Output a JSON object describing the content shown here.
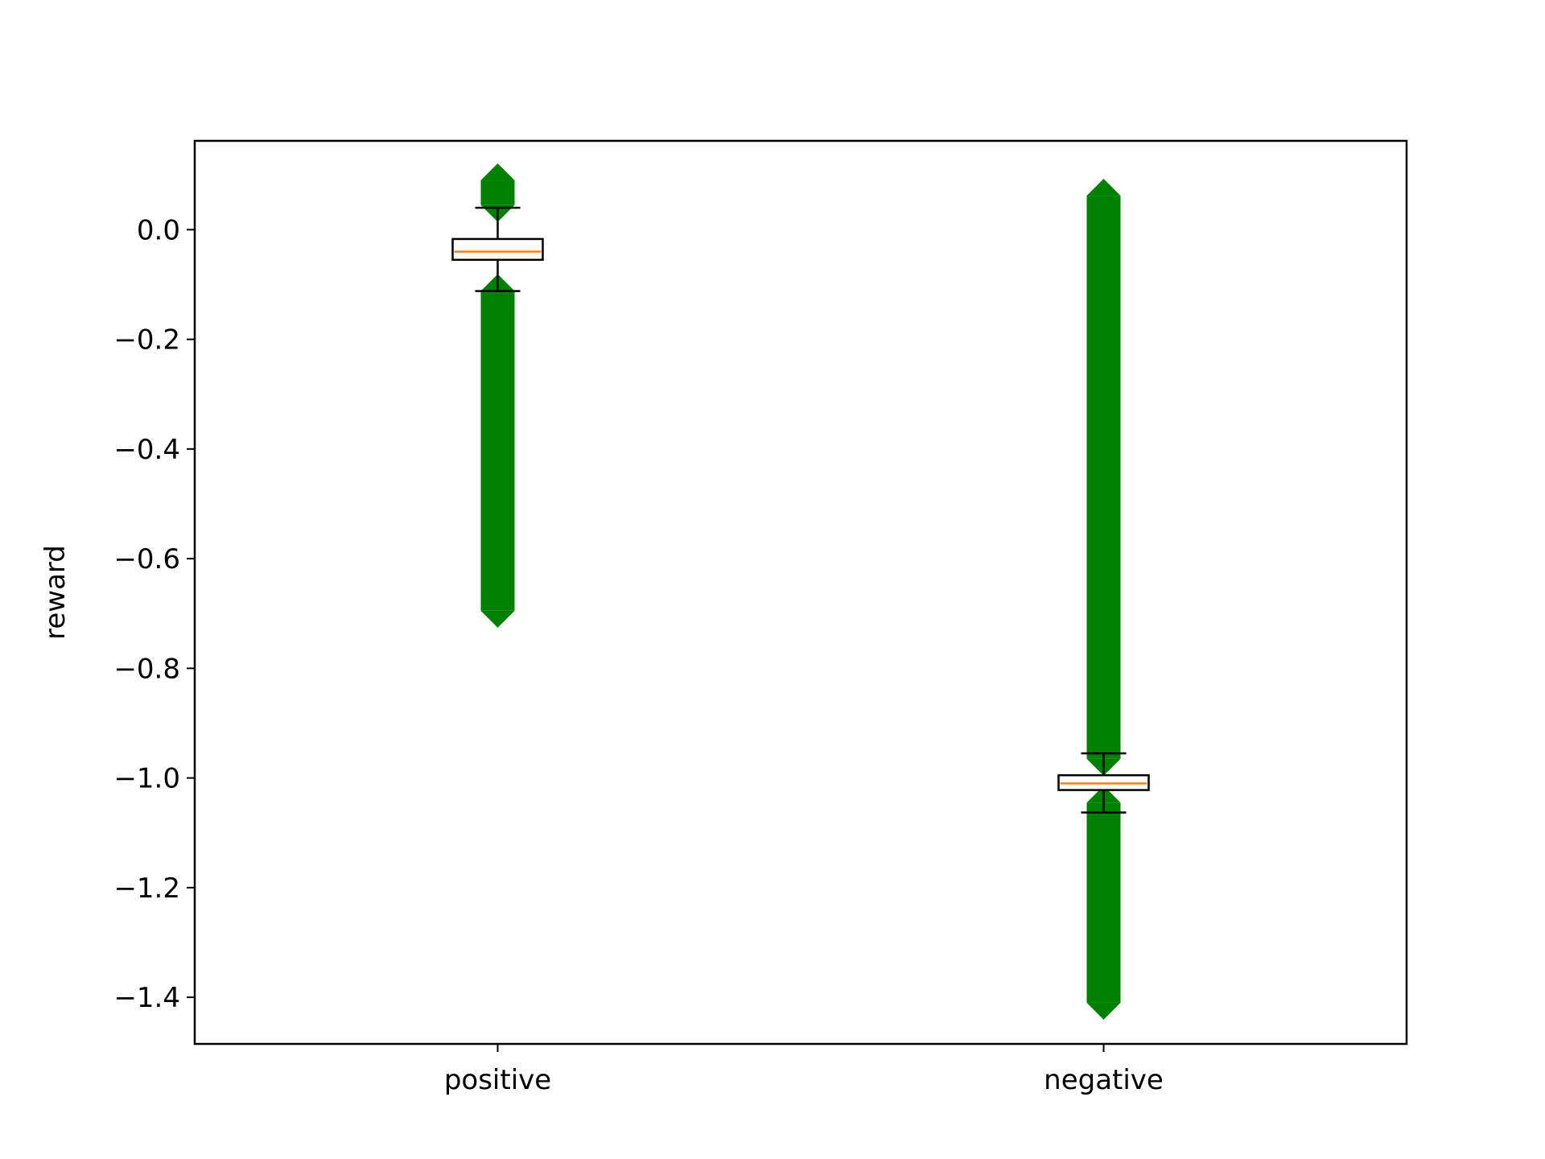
{
  "chart_data": {
    "type": "boxplot",
    "title": "",
    "xlabel": "",
    "ylabel": "reward",
    "ylim": [
      -1.485,
      0.162
    ],
    "yticks": [
      0.0,
      -0.2,
      -0.4,
      -0.6,
      -0.8,
      -1.0,
      -1.2,
      -1.4
    ],
    "ytick_labels": [
      "0.0",
      "−0.2",
      "−0.4",
      "−0.6",
      "−0.8",
      "−1.0",
      "−1.2",
      "−1.4"
    ],
    "categories": [
      "positive",
      "negative"
    ],
    "grid": false,
    "colors": {
      "box": "#000000",
      "median": "#ff7f0e",
      "flier": "#008000"
    },
    "boxes": [
      {
        "name": "positive",
        "whisker_high": 0.04,
        "q3": -0.017,
        "median": -0.04,
        "q1": -0.055,
        "whisker_low": -0.112,
        "fliers_high_range": [
          0.045,
          0.09
        ],
        "fliers_low_range": [
          -0.112,
          -0.695
        ]
      },
      {
        "name": "negative",
        "whisker_high": -0.955,
        "q3": -0.995,
        "median": -1.01,
        "q1": -1.022,
        "whisker_low": -1.063,
        "fliers_high_range": [
          -0.965,
          0.062
        ],
        "fliers_low_range": [
          -1.045,
          -1.41
        ]
      }
    ]
  }
}
